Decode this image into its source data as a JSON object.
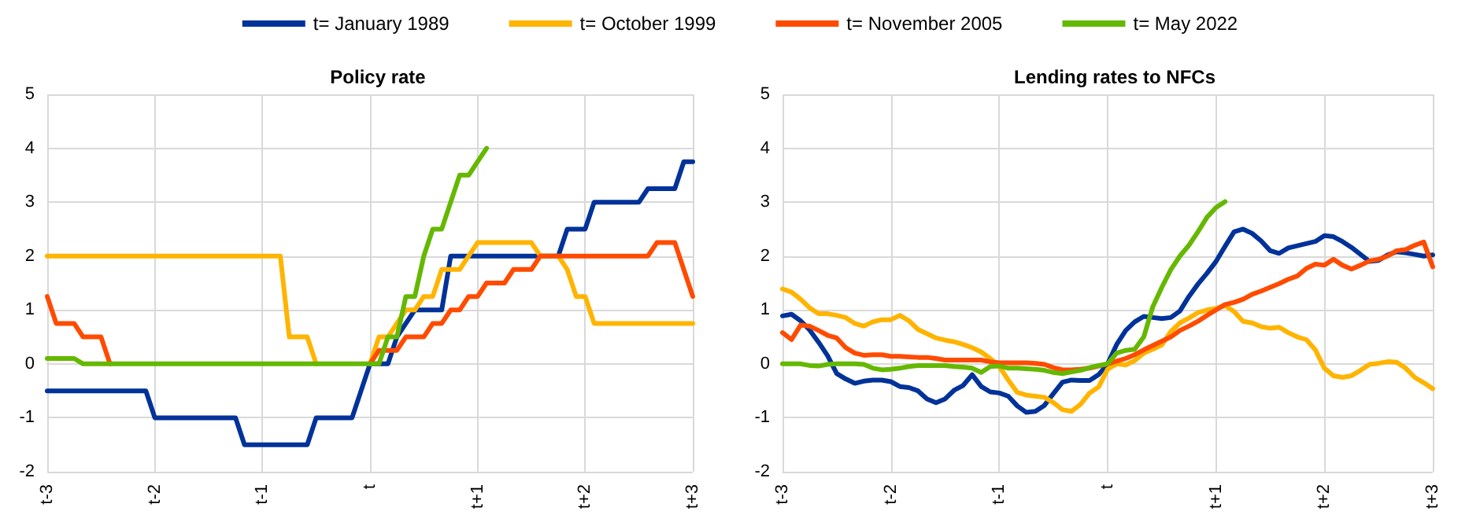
{
  "chart_data": [
    {
      "type": "line",
      "title": "Policy rate",
      "legend": "top",
      "grid": true,
      "marker": "none",
      "line_style": "solid",
      "categories": [
        "t-3",
        null,
        null,
        null,
        null,
        null,
        null,
        null,
        null,
        null,
        null,
        null,
        "t-2",
        null,
        null,
        null,
        null,
        null,
        null,
        null,
        null,
        null,
        null,
        null,
        "t-1",
        null,
        null,
        null,
        null,
        null,
        null,
        null,
        null,
        null,
        null,
        null,
        "t",
        null,
        null,
        null,
        null,
        null,
        null,
        null,
        null,
        null,
        null,
        null,
        "t+1",
        null,
        null,
        null,
        null,
        null,
        null,
        null,
        null,
        null,
        null,
        null,
        "t+2",
        null,
        null,
        null,
        null,
        null,
        null,
        null,
        null,
        null,
        null,
        null,
        "t+3"
      ],
      "ylim": [
        -2,
        5
      ],
      "yticks": [
        -2,
        -1,
        0,
        1,
        2,
        3,
        4,
        5
      ],
      "series": [
        {
          "name": "t= January 1989",
          "color": "#003299",
          "values": [
            -0.5,
            -0.5,
            -0.5,
            -0.5,
            -0.5,
            -0.5,
            -0.5,
            -0.5,
            -0.5,
            -0.5,
            -0.5,
            -0.5,
            -1,
            -1,
            -1,
            -1,
            -1,
            -1,
            -1,
            -1,
            -1,
            -1,
            -1.5,
            -1.5,
            -1.5,
            -1.5,
            -1.5,
            -1.5,
            -1.5,
            -1.5,
            -1,
            -1,
            -1,
            -1,
            -1,
            -0.5,
            0,
            0,
            0,
            0.5,
            0.75,
            1,
            1,
            1,
            1,
            2,
            2,
            2,
            2,
            2,
            2,
            2,
            2,
            2,
            2,
            2,
            2,
            2,
            2.5,
            2.5,
            2.5,
            3,
            3,
            3,
            3,
            3,
            3,
            3.25,
            3.25,
            3.25,
            3.25,
            3.75,
            3.75
          ]
        },
        {
          "name": "t= October 1999",
          "color": "#ffb400",
          "values": [
            2,
            2,
            2,
            2,
            2,
            2,
            2,
            2,
            2,
            2,
            2,
            2,
            2,
            2,
            2,
            2,
            2,
            2,
            2,
            2,
            2,
            2,
            2,
            2,
            2,
            2,
            2,
            0.5,
            0.5,
            0.5,
            0,
            null,
            null,
            null,
            null,
            null,
            0,
            0.5,
            0.5,
            0.75,
            1,
            1,
            1.25,
            1.25,
            1.75,
            1.75,
            1.75,
            2,
            2.25,
            2.25,
            2.25,
            2.25,
            2.25,
            2.25,
            2.25,
            2,
            2,
            2,
            1.75,
            1.25,
            1.25,
            0.75,
            0.75,
            0.75,
            0.75,
            0.75,
            0.75,
            0.75,
            0.75,
            0.75,
            0.75,
            0.75,
            0.75
          ]
        },
        {
          "name": "t= November 2005",
          "color": "#ff4b00",
          "values": [
            1.25,
            0.75,
            0.75,
            0.75,
            0.5,
            0.5,
            0.5,
            0,
            null,
            null,
            null,
            null,
            null,
            null,
            null,
            null,
            null,
            null,
            null,
            null,
            null,
            null,
            null,
            null,
            null,
            null,
            null,
            null,
            null,
            null,
            null,
            null,
            null,
            null,
            null,
            null,
            0,
            0.25,
            0.25,
            0.25,
            0.5,
            0.5,
            0.5,
            0.75,
            0.75,
            1,
            1,
            1.25,
            1.25,
            1.5,
            1.5,
            1.5,
            1.75,
            1.75,
            1.75,
            2,
            2,
            2,
            2,
            2,
            2,
            2,
            2,
            2,
            2,
            2,
            2,
            2,
            2.25,
            2.25,
            2.25,
            1.75,
            1.25
          ]
        },
        {
          "name": "t= May 2022",
          "color": "#65b800",
          "values": [
            0.1,
            0.1,
            0.1,
            0.1,
            0,
            0,
            0,
            0,
            0,
            0,
            0,
            0,
            0,
            0,
            0,
            0,
            0,
            0,
            0,
            0,
            0,
            0,
            0,
            0,
            0,
            0,
            0,
            0,
            0,
            0,
            0,
            0,
            0,
            0,
            0,
            0,
            0,
            0,
            0.5,
            0.5,
            1.25,
            1.25,
            2,
            2.5,
            2.5,
            3,
            3.5,
            3.5,
            3.75,
            4,
            null,
            null,
            null,
            null,
            null,
            null,
            null,
            null,
            null,
            null,
            null,
            null,
            null,
            null,
            null,
            null,
            null,
            null,
            null,
            null,
            null,
            null,
            null
          ]
        }
      ]
    },
    {
      "type": "line",
      "title": "Lending rates to NFCs",
      "grid": true,
      "marker": "none",
      "line_style": "solid",
      "categories": [
        "t-3",
        null,
        null,
        null,
        null,
        null,
        null,
        null,
        null,
        null,
        null,
        null,
        "t-2",
        null,
        null,
        null,
        null,
        null,
        null,
        null,
        null,
        null,
        null,
        null,
        "t-1",
        null,
        null,
        null,
        null,
        null,
        null,
        null,
        null,
        null,
        null,
        null,
        "t",
        null,
        null,
        null,
        null,
        null,
        null,
        null,
        null,
        null,
        null,
        null,
        "t+1",
        null,
        null,
        null,
        null,
        null,
        null,
        null,
        null,
        null,
        null,
        null,
        "t+2",
        null,
        null,
        null,
        null,
        null,
        null,
        null,
        null,
        null,
        null,
        null,
        "t+3"
      ],
      "ylim": [
        -2,
        5
      ],
      "yticks": [
        -2,
        -1,
        0,
        1,
        2,
        3,
        4,
        5
      ],
      "series": [
        {
          "color": "#003299",
          "values": [
            0.89,
            0.92,
            0.8,
            0.63,
            0.4,
            0.15,
            -0.18,
            -0.28,
            -0.36,
            -0.32,
            -0.3,
            -0.3,
            -0.33,
            -0.42,
            -0.44,
            -0.5,
            -0.65,
            -0.72,
            -0.65,
            -0.49,
            -0.4,
            -0.2,
            -0.42,
            -0.52,
            -0.54,
            -0.6,
            -0.78,
            -0.9,
            -0.88,
            -0.77,
            -0.55,
            -0.34,
            -0.3,
            -0.31,
            -0.31,
            -0.2,
            0,
            0.36,
            0.62,
            0.78,
            0.88,
            0.86,
            0.84,
            0.86,
            0.98,
            1.25,
            1.48,
            1.68,
            1.9,
            2.18,
            2.45,
            2.5,
            2.42,
            2.28,
            2.1,
            2.05,
            2.15,
            2.19,
            2.23,
            2.27,
            2.38,
            2.36,
            2.27,
            2.16,
            2.03,
            1.9,
            1.92,
            2.02,
            2.08,
            2.06,
            2.03,
            2,
            2.02
          ]
        },
        {
          "color": "#ffb400",
          "values": [
            1.39,
            1.33,
            1.2,
            1.04,
            0.93,
            0.93,
            0.9,
            0.86,
            0.75,
            0.7,
            0.78,
            0.82,
            0.82,
            0.9,
            0.8,
            0.64,
            0.56,
            0.48,
            0.44,
            0.41,
            0.36,
            0.3,
            0.22,
            0.1,
            -0.05,
            -0.3,
            -0.53,
            -0.58,
            -0.6,
            -0.62,
            -0.72,
            -0.85,
            -0.88,
            -0.75,
            -0.54,
            -0.43,
            -0.1,
            0,
            -0.02,
            0.06,
            0.2,
            0.27,
            0.35,
            0.6,
            0.76,
            0.85,
            0.95,
            1,
            1.03,
            1.08,
            0.97,
            0.79,
            0.76,
            0.69,
            0.66,
            0.68,
            0.58,
            0.5,
            0.45,
            0.26,
            -0.08,
            -0.22,
            -0.25,
            -0.22,
            -0.12,
            -0.01,
            0.01,
            0.04,
            0.03,
            -0.08,
            -0.25,
            -0.35,
            -0.46
          ]
        },
        {
          "color": "#ff4b00",
          "values": [
            0.58,
            0.45,
            0.72,
            0.7,
            0.62,
            0.53,
            0.48,
            0.3,
            0.2,
            0.16,
            0.17,
            0.17,
            0.14,
            0.14,
            0.13,
            0.12,
            0.12,
            0.1,
            0.07,
            0.07,
            0.07,
            0.07,
            0.07,
            0.04,
            0.02,
            0.02,
            0.02,
            0.02,
            0.01,
            -0.01,
            -0.07,
            -0.11,
            -0.11,
            -0.1,
            -0.08,
            -0.04,
            0,
            0.05,
            0.1,
            0.17,
            0.26,
            0.34,
            0.42,
            0.5,
            0.62,
            0.7,
            0.79,
            0.9,
            1,
            1.1,
            1.14,
            1.2,
            1.29,
            1.35,
            1.42,
            1.49,
            1.57,
            1.63,
            1.77,
            1.85,
            1.83,
            1.94,
            1.83,
            1.76,
            1.83,
            1.91,
            1.94,
            2,
            2.1,
            2.12,
            2.2,
            2.26,
            1.8
          ]
        },
        {
          "color": "#65b800",
          "values": [
            0,
            0,
            0,
            -0.03,
            -0.04,
            -0.01,
            0,
            0,
            0,
            -0.01,
            -0.08,
            -0.11,
            -0.1,
            -0.08,
            -0.05,
            -0.03,
            -0.03,
            -0.03,
            -0.03,
            -0.05,
            -0.06,
            -0.08,
            -0.16,
            -0.05,
            -0.04,
            -0.08,
            -0.08,
            -0.09,
            -0.1,
            -0.12,
            -0.16,
            -0.18,
            -0.15,
            -0.12,
            -0.07,
            -0.03,
            0,
            0.2,
            0.25,
            0.27,
            0.5,
            1.06,
            1.42,
            1.75,
            2,
            2.2,
            2.45,
            2.72,
            2.9,
            3.01,
            null,
            null,
            null,
            null,
            null,
            null,
            null,
            null,
            null,
            null,
            null,
            null,
            null,
            null,
            null,
            null,
            null,
            null,
            null,
            null,
            null,
            null,
            null
          ]
        }
      ]
    }
  ]
}
